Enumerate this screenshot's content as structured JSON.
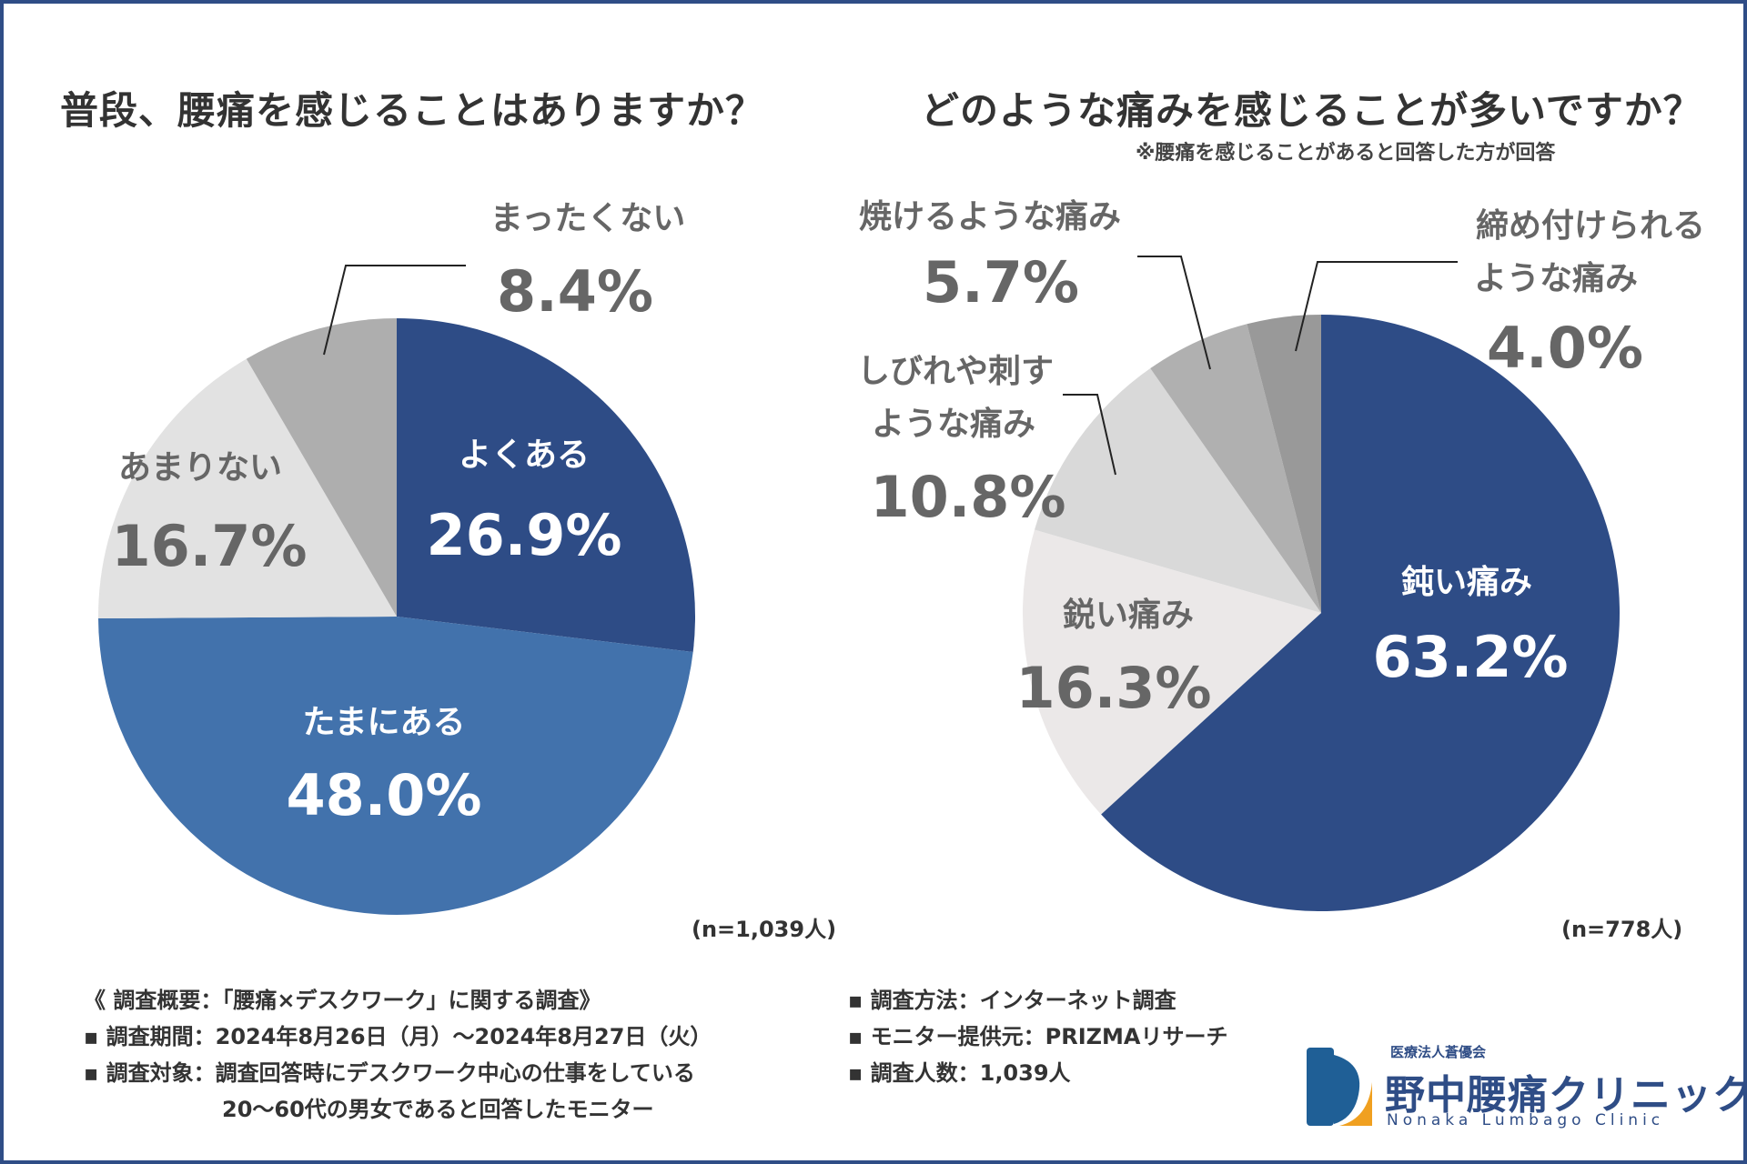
{
  "left": {
    "title": "普段、腰痛を感じることはありますか？",
    "n_label": "(n=1,039人)"
  },
  "right": {
    "title": "どのような痛みを感じることが多いですか？",
    "note": "※腰痛を感じることがあると回答した方が回答",
    "n_label": "(n=778人)"
  },
  "chart_data": [
    {
      "type": "pie",
      "title": "普段、腰痛を感じることはありますか？",
      "slices": [
        {
          "label": "よくある",
          "value": 26.9,
          "display": "26.9%",
          "color": "#2e4c86",
          "text_color": "#ffffff"
        },
        {
          "label": "たまにある",
          "value": 48.0,
          "display": "48.0%",
          "color": "#4272ac",
          "text_color": "#ffffff"
        },
        {
          "label": "あまりない",
          "value": 16.7,
          "display": "16.7%",
          "color": "#e2e2e2",
          "text_color": "#666666"
        },
        {
          "label": "まったくない",
          "value": 8.4,
          "display": "8.4%",
          "color": "#aeaeae",
          "text_color": "#666666"
        }
      ]
    },
    {
      "type": "pie",
      "title": "どのような痛みを感じることが多いですか？",
      "slices": [
        {
          "label": "鈍い痛み",
          "value": 63.2,
          "display": "63.2%",
          "color": "#2e4c86",
          "text_color": "#ffffff"
        },
        {
          "label": "鋭い痛み",
          "value": 16.3,
          "display": "16.3%",
          "color": "#ebe8e8",
          "text_color": "#666666"
        },
        {
          "label": "しびれや刺すような痛み",
          "value": 10.8,
          "display": "10.8%",
          "color": "#d9d9d9",
          "text_color": "#666666"
        },
        {
          "label": "焼けるような痛み",
          "value": 5.7,
          "display": "5.7%",
          "color": "#b0b0b0",
          "text_color": "#666666"
        },
        {
          "label": "締め付けられるような痛み",
          "value": 4.0,
          "display": "4.0%",
          "color": "#999999",
          "text_color": "#666666"
        }
      ]
    }
  ],
  "survey": {
    "left_rows": [
      "《 調査概要：「腰痛×デスクワーク」に関する調査》",
      "▪ 調査期間：2024年8月26日（月）〜2024年8月27日（火）",
      "▪ 調査対象：調査回答時にデスクワーク中心の仕事をしている",
      "20〜60代の男女であると回答したモニター"
    ],
    "right_rows": [
      "▪ 調査方法：インターネット調査",
      "▪ モニター提供元：PRIZMAリサーチ",
      "▪ 調査人数：1,039人"
    ]
  },
  "logo": {
    "corp": "医療法人蒼優会",
    "name": "野中腰痛クリニック",
    "en": "Nonaka Lumbago Clinic",
    "color_blue": "#1f5f96",
    "color_orange": "#f0a020"
  }
}
